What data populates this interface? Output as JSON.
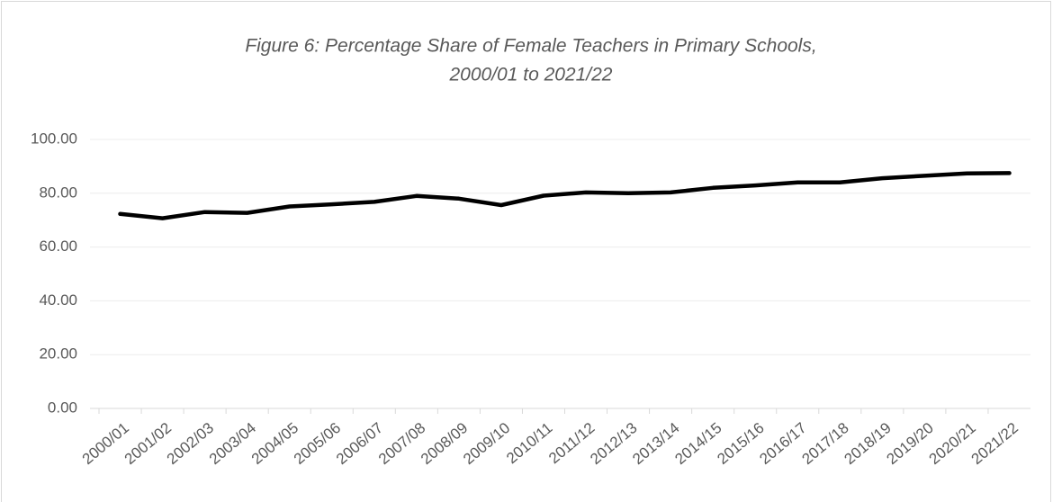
{
  "chart_data": {
    "type": "line",
    "title": [
      "Figure 6: Percentage Share of Female Teachers in Primary Schools,",
      "2000/01 to 2021/22"
    ],
    "categories": [
      "2000/01",
      "2001/02",
      "2002/03",
      "2003/04",
      "2004/05",
      "2005/06",
      "2006/07",
      "2007/08",
      "2008/09",
      "2009/10",
      "2010/11",
      "2011/12",
      "2012/13",
      "2013/14",
      "2014/15",
      "2015/16",
      "2016/17",
      "2017/18",
      "2018/19",
      "2019/20",
      "2020/21",
      "2021/22"
    ],
    "values": [
      72.3,
      70.7,
      73.0,
      72.7,
      75.1,
      75.9,
      76.8,
      79.0,
      78.0,
      75.6,
      79.1,
      80.3,
      80.0,
      80.3,
      82.0,
      82.9,
      84.0,
      84.0,
      85.6,
      86.5,
      87.4,
      87.5
    ],
    "color": "#000000",
    "ylim": [
      0,
      100
    ],
    "yticks": [
      {
        "value": 0,
        "label": "0.00"
      },
      {
        "value": 20,
        "label": "20.00"
      },
      {
        "value": 40,
        "label": "40.00"
      },
      {
        "value": 60,
        "label": "60.00"
      },
      {
        "value": 80,
        "label": "80.00"
      },
      {
        "value": 100,
        "label": "100.00"
      }
    ],
    "grid": true
  }
}
